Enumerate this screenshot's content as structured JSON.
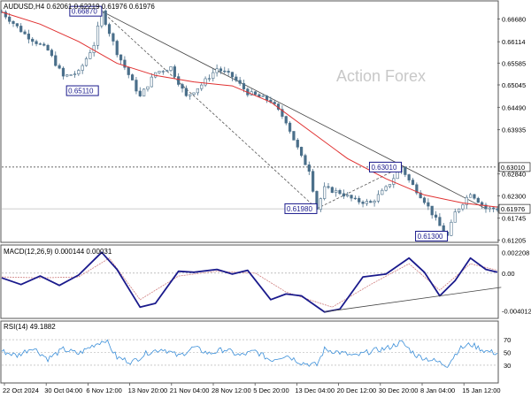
{
  "chart_data": [
    {
      "type": "candlestick",
      "header": "AUDUSD,H4  0.62061 0.62219 0.61976 0.61976",
      "watermark": "Action Forex",
      "ylim": [
        0.6119,
        0.6706
      ],
      "yticks": [
        "0.66680",
        "0.66114",
        "0.65585",
        "0.65045",
        "0.64490",
        "0.63935",
        "0.62840",
        "0.62300",
        "0.61745",
        "0.61205"
      ],
      "last_price": "0.61976",
      "resistance_level": 0.6301,
      "resistance_label": "0.63010",
      "price_path": [
        [
          0,
          0.6685
        ],
        [
          6,
          0.663
        ],
        [
          12,
          0.659
        ],
        [
          16,
          0.6525
        ],
        [
          20,
          0.6535
        ],
        [
          24,
          0.6605
        ],
        [
          26,
          0.6685
        ],
        [
          30,
          0.6585
        ],
        [
          36,
          0.6475
        ],
        [
          40,
          0.6535
        ],
        [
          44,
          0.6548
        ],
        [
          48,
          0.6475
        ],
        [
          52,
          0.6505
        ],
        [
          56,
          0.6545
        ],
        [
          60,
          0.6525
        ],
        [
          64,
          0.6485
        ],
        [
          70,
          0.6465
        ],
        [
          74,
          0.6415
        ],
        [
          78,
          0.6325
        ],
        [
          80,
          0.6295
        ],
        [
          82,
          0.6198
        ],
        [
          84,
          0.6248
        ],
        [
          88,
          0.6238
        ],
        [
          92,
          0.6218
        ],
        [
          96,
          0.6212
        ],
        [
          100,
          0.6248
        ],
        [
          104,
          0.6301
        ],
        [
          106,
          0.6268
        ],
        [
          110,
          0.6218
        ],
        [
          114,
          0.6155
        ],
        [
          116,
          0.613
        ],
        [
          118,
          0.6188
        ],
        [
          122,
          0.6238
        ],
        [
          126,
          0.6198
        ],
        [
          129,
          0.6198
        ]
      ],
      "ma_path": [
        [
          0,
          0.6685
        ],
        [
          10,
          0.6655
        ],
        [
          20,
          0.6612
        ],
        [
          30,
          0.6558
        ],
        [
          40,
          0.6528
        ],
        [
          50,
          0.6512
        ],
        [
          60,
          0.6502
        ],
        [
          70,
          0.6462
        ],
        [
          80,
          0.6392
        ],
        [
          90,
          0.6322
        ],
        [
          100,
          0.6272
        ],
        [
          110,
          0.6232
        ],
        [
          120,
          0.6212
        ],
        [
          129,
          0.6202
        ]
      ],
      "trend_line": [
        [
          26,
          0.6687
        ],
        [
          126,
          0.6198
        ]
      ],
      "channel_line": [
        [
          26,
          0.6687
        ],
        [
          82,
          0.6198
        ]
      ],
      "channel_return": [
        [
          82,
          0.6198
        ],
        [
          104,
          0.6301
        ]
      ],
      "annotations": [
        {
          "label": "0.66870",
          "x": 26,
          "value": 0.6687,
          "pos": "left"
        },
        {
          "label": "0.65110",
          "x": 21,
          "value": 0.6511,
          "pos": "below"
        },
        {
          "label": "0.61980",
          "x": 82,
          "value": 0.6198,
          "pos": "left"
        },
        {
          "label": "0.63010",
          "x": 104,
          "value": 0.6301,
          "pos": "left"
        },
        {
          "label": "0.61300",
          "x": 116,
          "value": 0.613,
          "pos": "left"
        }
      ]
    },
    {
      "type": "line",
      "header": "MACD(12,26,9) 0.000144 0.00031",
      "ylim": [
        -0.0046,
        0.0027
      ],
      "yticks": [
        "0.002208",
        "0.00",
        "-0.004012"
      ],
      "macd_path": [
        [
          0,
          -0.0005
        ],
        [
          5,
          -0.0012
        ],
        [
          10,
          -0.0003
        ],
        [
          15,
          -0.0013
        ],
        [
          20,
          -0.0002
        ],
        [
          26,
          0.0022
        ],
        [
          30,
          0.0004
        ],
        [
          36,
          -0.0036
        ],
        [
          40,
          -0.0032
        ],
        [
          46,
          0.0002
        ],
        [
          50,
          0.0001
        ],
        [
          56,
          0.0004
        ],
        [
          60,
          -0.0001
        ],
        [
          64,
          0.0003
        ],
        [
          70,
          -0.0028
        ],
        [
          74,
          -0.0022
        ],
        [
          78,
          -0.0024
        ],
        [
          84,
          -0.0041
        ],
        [
          88,
          -0.0038
        ],
        [
          94,
          -0.0004
        ],
        [
          100,
          -0.0001
        ],
        [
          106,
          0.0016
        ],
        [
          110,
          0.0001
        ],
        [
          114,
          -0.0024
        ],
        [
          118,
          -0.0008
        ],
        [
          122,
          0.0016
        ],
        [
          126,
          0.0004
        ],
        [
          129,
          0.0001
        ]
      ],
      "signal_path": [
        [
          0,
          -0.0004
        ],
        [
          10,
          -0.0005
        ],
        [
          20,
          -0.0004
        ],
        [
          28,
          0.0016
        ],
        [
          36,
          -0.0028
        ],
        [
          46,
          -0.0003
        ],
        [
          56,
          0.0002
        ],
        [
          66,
          0.0,
          "x"
        ],
        [
          74,
          -0.002
        ],
        [
          86,
          -0.0036
        ],
        [
          96,
          -0.0012
        ],
        [
          106,
          0.001
        ],
        [
          114,
          -0.0018
        ],
        [
          122,
          0.001
        ],
        [
          129,
          0.0003
        ]
      ],
      "trend_line": [
        [
          84,
          -0.0041
        ],
        [
          130,
          -0.0015
        ]
      ]
    },
    {
      "type": "line",
      "header": "RSI(14) 49.1882",
      "ylim": [
        5,
        95
      ],
      "yticks": [
        "70",
        "50",
        "30"
      ],
      "rsi_path": [
        [
          0,
          52
        ],
        [
          4,
          45
        ],
        [
          8,
          58
        ],
        [
          12,
          40
        ],
        [
          16,
          55
        ],
        [
          20,
          48
        ],
        [
          24,
          62
        ],
        [
          27,
          70
        ],
        [
          30,
          42
        ],
        [
          34,
          35
        ],
        [
          38,
          50
        ],
        [
          42,
          56
        ],
        [
          46,
          44
        ],
        [
          50,
          58
        ],
        [
          54,
          48
        ],
        [
          58,
          55
        ],
        [
          62,
          45
        ],
        [
          66,
          52
        ],
        [
          70,
          38
        ],
        [
          74,
          46
        ],
        [
          78,
          34
        ],
        [
          82,
          30
        ],
        [
          84,
          55
        ],
        [
          88,
          50
        ],
        [
          92,
          44
        ],
        [
          96,
          52
        ],
        [
          100,
          56
        ],
        [
          104,
          66
        ],
        [
          108,
          45
        ],
        [
          112,
          38
        ],
        [
          116,
          30
        ],
        [
          119,
          55
        ],
        [
          122,
          63
        ],
        [
          126,
          52
        ],
        [
          129,
          49
        ]
      ]
    }
  ],
  "x_axis": {
    "labels": [
      "22 Oct 2024",
      "30 Oct 04:00",
      "6 Nov 12:00",
      "13 Nov 20:00",
      "21 Nov 04:00",
      "28 Nov 12:00",
      "5 Dec 20:00",
      "13 Dec 04:00",
      "20 Dec 12:00",
      "30 Dec 20:00",
      "8 Jan 04:00",
      "15 Jan 12:00"
    ]
  }
}
